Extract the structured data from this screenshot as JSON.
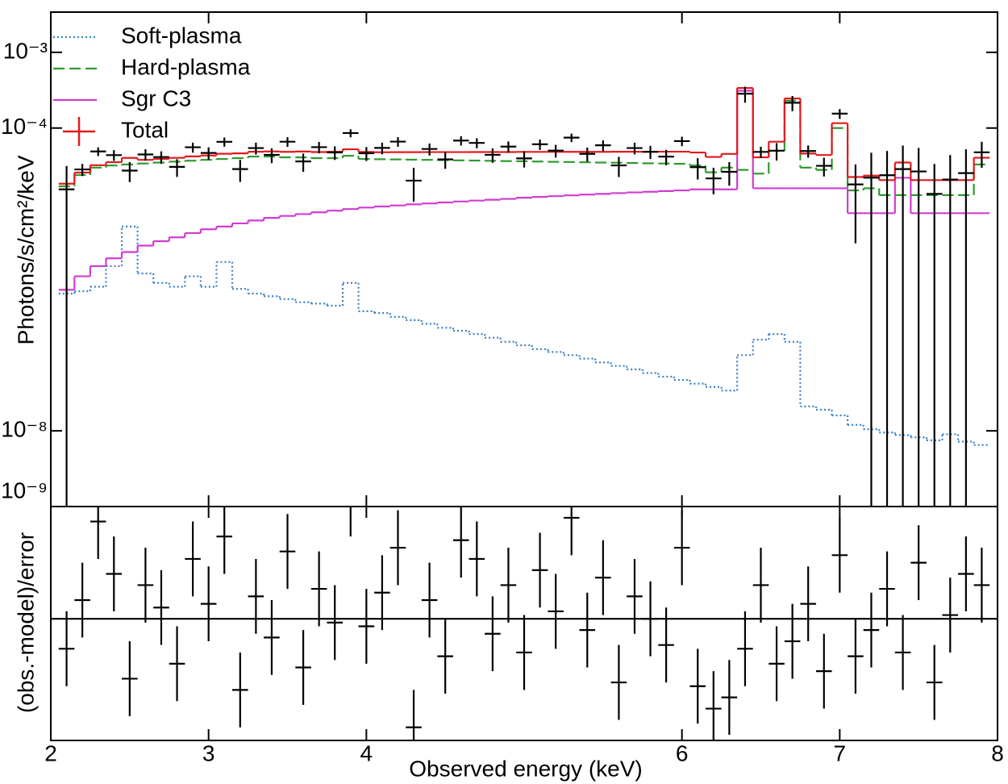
{
  "chart_data": [
    {
      "type": "line",
      "ylabel": "Photons/s/cm²/keV",
      "log_scale": "y",
      "xlim": [
        2,
        8
      ],
      "ylim": [
        1e-09,
        0.0034
      ],
      "yticks": [
        {
          "value": 0.001,
          "label": "10⁻³"
        },
        {
          "value": 0.0001,
          "label": "10⁻⁴"
        },
        {
          "value": 1e-08,
          "label": "10⁻⁸"
        },
        {
          "value": 1e-09,
          "label": "10⁻⁹"
        }
      ],
      "legend": "upper left",
      "x": [
        2.1,
        2.2,
        2.3,
        2.4,
        2.5,
        2.6,
        2.7,
        2.8,
        2.9,
        3.0,
        3.1,
        3.2,
        3.3,
        3.4,
        3.5,
        3.6,
        3.7,
        3.8,
        3.9,
        4.0,
        4.1,
        4.2,
        4.3,
        4.4,
        4.5,
        4.6,
        4.7,
        4.8,
        4.9,
        5.0,
        5.1,
        5.2,
        5.3,
        5.4,
        5.5,
        5.6,
        5.7,
        5.8,
        5.9,
        6.0,
        6.1,
        6.2,
        6.3,
        6.4,
        6.5,
        6.6,
        6.7,
        6.8,
        6.9,
        7.0,
        7.1,
        7.2,
        7.3,
        7.4,
        7.5,
        7.6,
        7.7,
        7.8,
        7.9
      ],
      "series": [
        {
          "name": "Soft-plasma",
          "color": "#3b80c4",
          "dash": "dotted",
          "values": [
            6.5e-07,
            7e-07,
            8e-07,
            1.5e-06,
            5e-06,
            1.2e-06,
            9e-07,
            8e-07,
            1.1e-06,
            8e-07,
            1.7e-06,
            7.5e-07,
            6.5e-07,
            6e-07,
            5.5e-07,
            5e-07,
            4.8e-07,
            4.5e-07,
            9e-07,
            3.8e-07,
            3.6e-07,
            3.2e-07,
            2.9e-07,
            2.6e-07,
            2.3e-07,
            2.1e-07,
            1.9e-07,
            1.7e-07,
            1.5e-07,
            1.35e-07,
            1.2e-07,
            1.1e-07,
            1e-07,
            9e-08,
            8e-08,
            7.2e-08,
            6.5e-08,
            5.8e-08,
            5.2e-08,
            4.7e-08,
            4.2e-08,
            3.8e-08,
            3.4e-08,
            1e-07,
            1.6e-07,
            1.9e-07,
            1.5e-07,
            2.1e-08,
            1.9e-08,
            1.6e-08,
            1.2e-08,
            1.05e-08,
            9.5e-09,
            8.8e-09,
            8.2e-09,
            7.5e-09,
            9e-09,
            7.2e-09,
            6.5e-09
          ]
        },
        {
          "name": "Hard-plasma",
          "color": "#2e9a2e",
          "dash": "dashed",
          "values": [
            1.7e-05,
            2.4e-05,
            3e-05,
            3.2e-05,
            3.3e-05,
            3.4e-05,
            3.5e-05,
            3.6e-05,
            3.7e-05,
            3.8e-05,
            3.9e-05,
            4e-05,
            4.2e-05,
            4.2e-05,
            4.1e-05,
            4.1e-05,
            4e-05,
            4e-05,
            4.3e-05,
            3.9e-05,
            3.87e-05,
            3.85e-05,
            3.82e-05,
            3.8e-05,
            3.77e-05,
            3.74e-05,
            3.72e-05,
            3.69e-05,
            3.66e-05,
            3.64e-05,
            3.61e-05,
            3.58e-05,
            3.56e-05,
            3.53e-05,
            3.5e-05,
            3.48e-05,
            3.45e-05,
            3.42e-05,
            3.4e-05,
            3.37e-05,
            3.2e-05,
            2.6e-05,
            3e-05,
            2.8e-05,
            2.5e-05,
            5e-05,
            0.00023,
            3e-05,
            2.8e-05,
            0.0001,
            1.5e-05,
            1.6e-05,
            1.3e-05,
            1.3e-05,
            1.3e-05,
            1.3e-05,
            1.3e-05,
            1.3e-05,
            3.3e-05
          ]
        },
        {
          "name": "Sgr C3",
          "color": "#d03cd0",
          "dash": "solid",
          "values": [
            7.3e-07,
            1.1e-06,
            1.5e-06,
            1.9e-06,
            2.3e-06,
            2.8e-06,
            3.2e-06,
            3.6e-06,
            4.1e-06,
            4.6e-06,
            5e-06,
            5.5e-06,
            6e-06,
            6.5e-06,
            6.9e-06,
            7.3e-06,
            7.7e-06,
            8.1e-06,
            8.5e-06,
            8.9e-06,
            9.2e-06,
            9.5e-06,
            9.8e-06,
            1.01e-05,
            1.04e-05,
            1.07e-05,
            1.1e-05,
            1.13e-05,
            1.16e-05,
            1.2e-05,
            1.23e-05,
            1.26e-05,
            1.29e-05,
            1.32e-05,
            1.35e-05,
            1.38e-05,
            1.41e-05,
            1.44e-05,
            1.47e-05,
            1.5e-05,
            1.55e-05,
            1.55e-05,
            1.55e-05,
            0.00031,
            1.6e-05,
            1.6e-05,
            1.6e-05,
            1.6e-05,
            1.6e-05,
            1.6e-05,
            7.5e-06,
            7.5e-06,
            7.5e-06,
            2.2e-05,
            7.5e-06,
            7.5e-06,
            7.5e-06,
            7.5e-06,
            7.5e-06
          ]
        },
        {
          "name": "Total",
          "color": "#e3191c",
          "dash": "solid",
          "values": [
            1.84e-05,
            2.58e-05,
            3.23e-05,
            3.54e-05,
            4.03e-05,
            3.8e-05,
            3.91e-05,
            4.04e-05,
            4.22e-05,
            4.34e-05,
            4.57e-05,
            4.63e-05,
            4.86e-05,
            4.91e-05,
            4.85e-05,
            4.89e-05,
            4.82e-05,
            4.86e-05,
            5.24e-05,
            4.83e-05,
            4.79e-05,
            4.8e-05,
            4.8e-05,
            4.81e-05,
            4.81e-05,
            4.81e-05,
            4.82e-05,
            4.82e-05,
            4.82e-05,
            4.84e-05,
            4.84e-05,
            4.84e-05,
            4.85e-05,
            4.85e-05,
            4.85e-05,
            4.86e-05,
            4.86e-05,
            4.86e-05,
            4.87e-05,
            4.87e-05,
            4.75e-05,
            4.15e-05,
            4.55e-05,
            0.000338,
            4.1e-05,
            6.6e-05,
            0.000246,
            4.6e-05,
            4.4e-05,
            0.000116,
            2.25e-05,
            2.35e-05,
            2.05e-05,
            3.5e-05,
            2.05e-05,
            2.05e-05,
            2.05e-05,
            2.05e-05,
            4.05e-05
          ]
        }
      ],
      "data": {
        "color": "#000000",
        "values": [
          1.55e-05,
          2.84e-05,
          4.91e-05,
          4.39e-05,
          2.74e-05,
          4.48e-05,
          4.14e-05,
          3.07e-05,
          5.57e-05,
          4.69e-05,
          6.58e-05,
          2.87e-05,
          5.44e-05,
          4.42e-05,
          6.6e-05,
          3.62e-05,
          5.59e-05,
          4.76e-05,
          8.59e-05,
          4.64e-05,
          5.46e-05,
          6.62e-05,
          2.02e-05,
          5.29e-05,
          3.85e-05,
          6.83e-05,
          6.36e-05,
          4.43e-05,
          5.69e-05,
          3.97e-05,
          6.1e-05,
          5.03e-05,
          7.47e-05,
          4.56e-05,
          5.92e-05,
          3.21e-05,
          5.44e-05,
          4.86e-05,
          4.19e-05,
          6.72e-05,
          3.04e-05,
          2.16e-05,
          2.64e-05,
          0.000284,
          4.84e-05,
          5.02e-05,
          0.000216,
          4.97e-05,
          3.17e-05,
          0.000155,
          1.8e-05,
          2.21e-05,
          2.38e-05,
          2.87e-05,
          2.67e-05,
          1.35e-05,
          2.09e-05,
          2.54e-05,
          4.78e-05
        ],
        "errors": [
          1.6e-05,
          5.2e-06,
          6.5e-06,
          7.1e-06,
          8.1e-06,
          7.6e-06,
          7.8e-06,
          8.1e-06,
          8.4e-06,
          8.7e-06,
          9.1e-06,
          9.3e-06,
          9.7e-06,
          9.8e-06,
          9.7e-06,
          9.8e-06,
          9.6e-06,
          9.7e-06,
          1.05e-05,
          9.7e-06,
          9.6e-06,
          9.6e-06,
          9.6e-06,
          9.6e-06,
          9.6e-06,
          9.6e-06,
          9.6e-06,
          9.6e-06,
          9.6e-06,
          9.6e-06,
          9.6e-06,
          9.6e-06,
          9.6e-06,
          9.6e-06,
          9.6e-06,
          9.6e-06,
          9.6e-06,
          9.6e-06,
          9.6e-06,
          9.6e-06,
          9.5e-06,
          8.3e-06,
          9.1e-06,
          6.8e-05,
          8.2e-06,
          1.3e-05,
          4.9e-05,
          9.2e-06,
          8.8e-06,
          2.3e-05,
          1.5e-05,
          2.5e-05,
          2.6e-05,
          3e-05,
          2.8e-05,
          2e-05,
          2.3e-05,
          2.7e-05,
          1.8e-05
        ]
      }
    },
    {
      "type": "residual",
      "ylabel": "(obs.-model)/error",
      "xlabel": "Observed energy (keV)",
      "xlim": [
        2,
        8
      ],
      "xticks": [
        2,
        3,
        4,
        6,
        7,
        8
      ],
      "ylim": [
        -3.25,
        3
      ],
      "values": [
        -0.8,
        0.5,
        2.6,
        1.2,
        -1.6,
        0.9,
        0.3,
        -1.2,
        1.6,
        0.4,
        2.2,
        -1.9,
        0.6,
        -0.5,
        1.8,
        -1.3,
        0.8,
        -0.1,
        3.2,
        -0.2,
        0.7,
        1.9,
        -2.9,
        0.5,
        -1.0,
        2.1,
        1.6,
        -0.4,
        0.9,
        -0.9,
        1.3,
        0.2,
        2.7,
        -0.3,
        1.1,
        -1.7,
        0.6,
        0.0,
        -0.7,
        1.9,
        -1.8,
        -2.4,
        -2.1,
        -0.8,
        0.9,
        -1.2,
        -0.6,
        0.4,
        -1.4,
        1.7,
        -1.0,
        -0.3,
        0.8,
        -0.9,
        1.5,
        -1.7,
        0.1,
        1.2,
        0.9
      ],
      "errors": [
        1,
        1,
        1,
        1,
        1,
        1,
        1,
        1,
        1,
        1,
        1,
        1,
        1,
        1,
        1,
        1,
        1,
        1,
        1,
        1,
        1,
        1,
        1,
        1,
        1,
        1,
        1,
        1,
        1,
        1,
        1,
        1,
        1,
        1,
        1,
        1,
        1,
        1,
        1,
        1,
        1,
        1,
        1,
        1,
        1,
        1,
        1,
        1,
        1,
        1,
        1,
        1,
        1,
        1,
        1,
        1,
        1,
        1,
        1
      ]
    }
  ]
}
